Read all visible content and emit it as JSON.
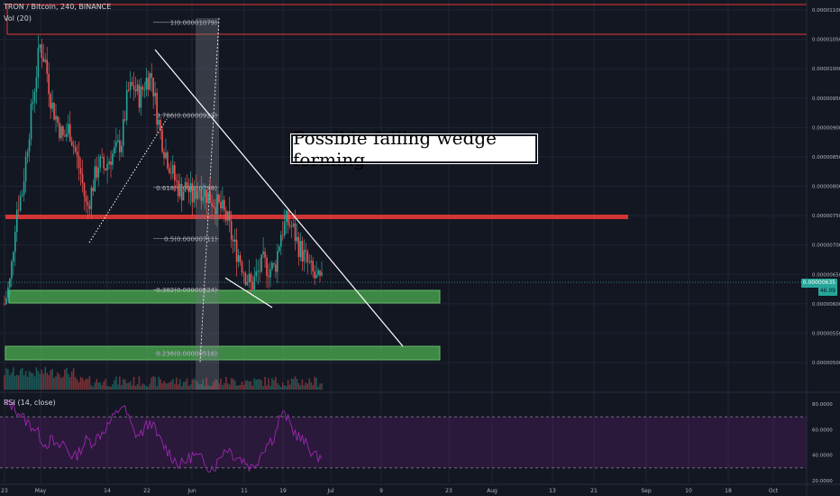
{
  "header": {
    "title": "TRON / Bitcoin, 240, BINANCE",
    "volume_label": "Vol (20)",
    "rsi_label": "RSI (14, close)"
  },
  "annotation": "Possible falling wedge forming",
  "price_labels": {
    "last_price": "0.00000635",
    "volume_value": "46.09"
  },
  "colors": {
    "background": "#131722",
    "up": "#26a69a",
    "down": "#ef5350",
    "resistance": "#e53935",
    "support_zone": "#4caf50",
    "rsi": "#9c27b0",
    "trendline": "#ffffff"
  },
  "fib_levels": [
    {
      "label": "1(0.00001079)",
      "ratio": 1,
      "price": 1.079e-05
    },
    {
      "label": "0.786(0.00000921)",
      "ratio": 0.786,
      "price": 9.21e-06
    },
    {
      "label": "0.618(0.00000798)",
      "ratio": 0.618,
      "price": 7.98e-06
    },
    {
      "label": "0.5(0.00000711)",
      "ratio": 0.5,
      "price": 7.11e-06
    },
    {
      "label": "0.382(0.00000624)",
      "ratio": 0.382,
      "price": 6.24e-06
    },
    {
      "label": "0.236(0.00000516)",
      "ratio": 0.236,
      "price": 5.16e-06
    }
  ],
  "chart_data": {
    "type": "line",
    "title": "TRON / Bitcoin, 240, BINANCE",
    "x_ticks": [
      "23",
      "May",
      "14",
      "22",
      "Jun",
      "11",
      "19",
      "Jul",
      "9",
      "23",
      "Aug",
      "13",
      "21",
      "Sep",
      "10",
      "18",
      "Oct"
    ],
    "y_ticks": [
      "0.00001100",
      "0.00001050",
      "0.00001000",
      "0.00000950",
      "0.00000900",
      "0.00000850",
      "0.00000800",
      "0.00000750",
      "0.00000700",
      "0.00000650",
      "0.00000600",
      "0.00000550",
      "0.00000500"
    ],
    "ylim": [
      4.8e-06,
      1.11e-05
    ],
    "series": [
      {
        "values": [
          6e-06,
          6.4e-06,
          7.6e-06,
          7.9e-06,
          8.8e-06,
          9.6e-06,
          1.04e-05,
          1.01e-05,
          9.4e-06,
          9.1e-06,
          8.8e-06,
          9e-06,
          8.6e-06,
          8.2e-06,
          7.6e-06,
          8e-06,
          8.4e-06,
          8.3e-06,
          8.5e-06,
          8.6e-06,
          8.8e-06,
          9.6e-06,
          9.7e-06,
          9.5e-06,
          9.8e-06,
          9.9e-06,
          9.2e-06,
          8.7e-06,
          8.4e-06,
          8.1e-06,
          7.9e-06,
          8e-06,
          7.8e-06,
          8e-06,
          7.9e-06,
          7.8e-06,
          7.7e-06,
          7.6e-06,
          7.4e-06,
          7e-06,
          6.8e-06,
          6.5e-06,
          6.3e-06,
          6.5e-06,
          6.7e-06,
          6.6e-06,
          6.6e-06,
          7.2e-06,
          7.4e-06,
          7.3e-06,
          7e-06,
          6.8e-06,
          6.6e-06,
          6.4e-06,
          6.35e-06
        ]
      }
    ],
    "rsi": {
      "label": "RSI (14, close)",
      "ylim": [
        20,
        85
      ],
      "levels": [
        70,
        30
      ],
      "y_ticks": [
        "80.0000",
        "60.0000",
        "40.0000",
        "20.0000"
      ],
      "values": [
        78,
        80,
        76,
        70,
        65,
        62,
        55,
        48,
        52,
        45,
        50,
        42,
        38,
        45,
        52,
        50,
        55,
        60,
        66,
        72,
        80,
        70,
        58,
        55,
        62,
        66,
        55,
        48,
        42,
        36,
        32,
        36,
        40,
        38,
        35,
        30,
        32,
        42,
        46,
        40,
        38,
        35,
        30,
        35,
        45,
        50,
        55,
        72,
        70,
        60,
        55,
        50,
        45,
        38,
        40
      ]
    },
    "grid": true
  }
}
